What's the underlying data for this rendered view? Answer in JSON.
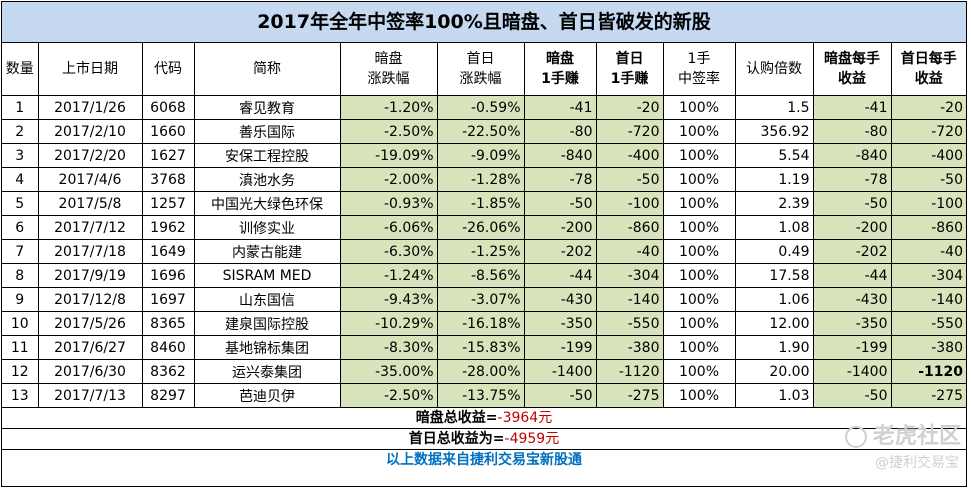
{
  "title": "2017年全年中签率100%且暗盘、首日皆破发的新股",
  "headers": [
    "数量",
    "上市日期",
    "代码",
    "简称",
    "暗盘\n涨跌幅",
    "首日\n涨跌幅",
    "暗盘\n1手赚",
    "首日\n1手赚",
    "1手\n中签率",
    "认购倍数",
    "暗盘每手\n收益",
    "首日每手\n收益"
  ],
  "rows": [
    [
      "1",
      "2017/1/26",
      "6068",
      "睿见教育",
      "-1.20%",
      "-0.59%",
      "-41",
      "-20",
      "100%",
      "1.5",
      "-41",
      "-20"
    ],
    [
      "2",
      "2017/2/10",
      "1660",
      "善乐国际",
      "-2.50%",
      "-22.50%",
      "-80",
      "-720",
      "100%",
      "356.92",
      "-80",
      "-720"
    ],
    [
      "3",
      "2017/2/20",
      "1627",
      "安保工程控股",
      "-19.09%",
      "-9.09%",
      "-840",
      "-400",
      "100%",
      "5.54",
      "-840",
      "-400"
    ],
    [
      "4",
      "2017/4/6",
      "3768",
      "滇池水务",
      "-2.00%",
      "-1.28%",
      "-78",
      "-50",
      "100%",
      "1.19",
      "-78",
      "-50"
    ],
    [
      "5",
      "2017/5/8",
      "1257",
      "中国光大绿色环保",
      "-0.93%",
      "-1.85%",
      "-50",
      "-100",
      "100%",
      "2.39",
      "-50",
      "-100"
    ],
    [
      "6",
      "2017/7/12",
      "1962",
      "训修实业",
      "-6.06%",
      "-26.06%",
      "-200",
      "-860",
      "100%",
      "1.08",
      "-200",
      "-860"
    ],
    [
      "7",
      "2017/7/18",
      "1649",
      "内蒙古能建",
      "-6.30%",
      "-1.25%",
      "-202",
      "-40",
      "100%",
      "0.49",
      "-202",
      "-40"
    ],
    [
      "8",
      "2017/9/19",
      "1696",
      "SISRAM MED",
      "-1.24%",
      "-8.56%",
      "-44",
      "-304",
      "100%",
      "17.58",
      "-44",
      "-304"
    ],
    [
      "9",
      "2017/12/8",
      "1697",
      "山东国信",
      "-9.43%",
      "-3.07%",
      "-430",
      "-140",
      "100%",
      "1.06",
      "-430",
      "-140"
    ],
    [
      "10",
      "2017/5/26",
      "8365",
      "建泉国际控股",
      "-10.29%",
      "-16.18%",
      "-350",
      "-550",
      "100%",
      "12.00",
      "-350",
      "-550"
    ],
    [
      "11",
      "2017/6/27",
      "8460",
      "基地锦标集团",
      "-8.30%",
      "-15.83%",
      "-199",
      "-380",
      "100%",
      "1.90",
      "-199",
      "-380"
    ],
    [
      "12",
      "2017/6/30",
      "8362",
      "运兴泰集团",
      "-35.00%",
      "-28.00%",
      "-1400",
      "-1120",
      "100%",
      "20.00",
      "-1400",
      "-1120"
    ],
    [
      "13",
      "2017/7/13",
      "8297",
      "芭迪贝伊",
      "-2.50%",
      "-13.75%",
      "-50",
      "-275",
      "100%",
      "1.03",
      "-50",
      "-275"
    ]
  ],
  "summary": {
    "dark_label": "暗盘总收益=",
    "dark_value": "-3964元",
    "first_label": "首日总收益为=",
    "first_value": "-4959元",
    "source": "以上数据来自捷利交易宝新股通"
  },
  "watermark": {
    "main": "老虎社区",
    "sub": "@捷利交易宝"
  }
}
